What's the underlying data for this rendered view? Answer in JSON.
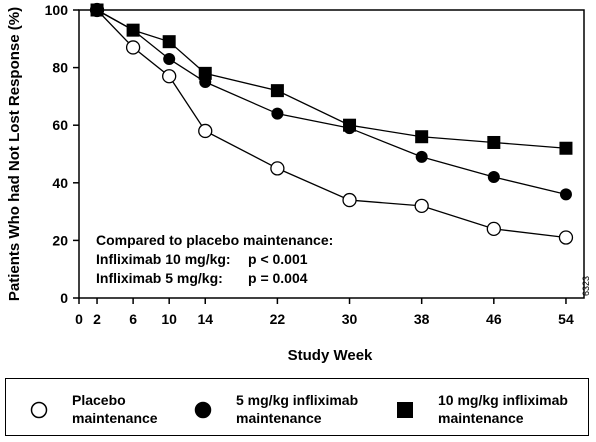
{
  "chart_data": {
    "type": "line",
    "xlabel": "Study Week",
    "ylabel": "Patients Who had Not Lost Response (%)",
    "xlim": [
      0,
      56
    ],
    "ylim": [
      0,
      100
    ],
    "x_ticks": [
      0,
      2,
      6,
      10,
      14,
      22,
      30,
      38,
      46,
      54
    ],
    "y_ticks": [
      0,
      20,
      40,
      60,
      80,
      100
    ],
    "grid": false,
    "series": [
      {
        "name": "Placebo maintenance",
        "marker": "open-circle",
        "color": "#000000",
        "x": [
          2,
          6,
          10,
          14,
          22,
          30,
          38,
          46,
          54
        ],
        "y": [
          100,
          87,
          77,
          58,
          45,
          34,
          32,
          24,
          21
        ]
      },
      {
        "name": "5 mg/kg infliximab maintenance",
        "marker": "filled-circle",
        "color": "#000000",
        "x": [
          2,
          6,
          10,
          14,
          22,
          30,
          38,
          46,
          54
        ],
        "y": [
          100,
          93,
          83,
          75,
          64,
          59,
          49,
          42,
          36
        ]
      },
      {
        "name": "10 mg/kg infliximab maintenance",
        "marker": "filled-square",
        "color": "#000000",
        "x": [
          2,
          6,
          10,
          14,
          22,
          30,
          38,
          46,
          54
        ],
        "y": [
          100,
          93,
          89,
          78,
          72,
          60,
          56,
          54,
          52
        ]
      }
    ],
    "annotation": {
      "heading": "Compared to placebo maintenance:",
      "rows": [
        {
          "label": "Infliximab 10 mg/kg:",
          "value": "p < 0.001"
        },
        {
          "label": "Infliximab 5 mg/kg:",
          "value": "p = 0.004"
        }
      ]
    },
    "side_code": "6323",
    "legend_position": "bottom",
    "legend": [
      {
        "line1": "Placebo",
        "line2": "maintenance",
        "marker": "open-circle"
      },
      {
        "line1": "5 mg/kg infliximab",
        "line2": "maintenance",
        "marker": "filled-circle"
      },
      {
        "line1": "10 mg/kg infliximab",
        "line2": "maintenance",
        "marker": "filled-square"
      }
    ]
  }
}
